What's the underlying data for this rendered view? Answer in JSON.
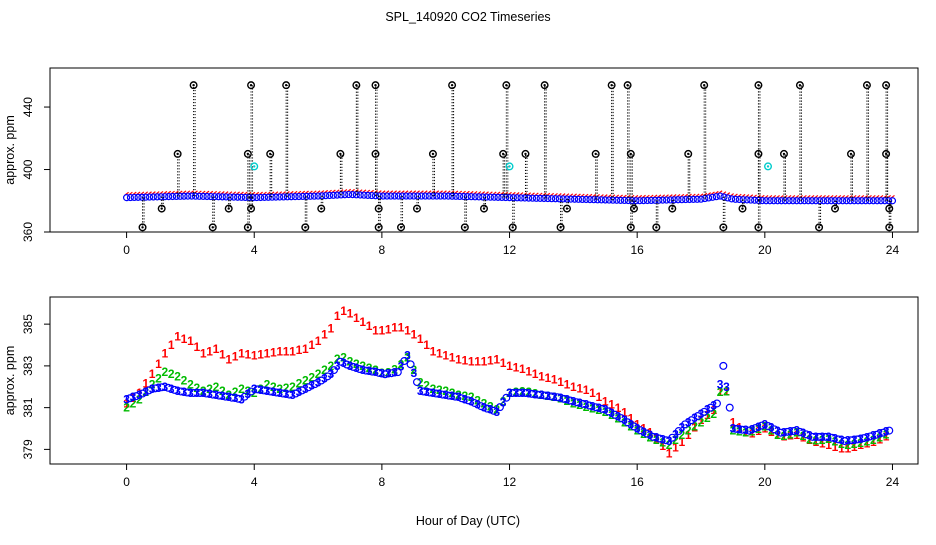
{
  "chart_data": [
    {
      "type": "scatter",
      "title": "SPL_140920  CO2 Timeseries",
      "xlabel": "",
      "ylabel": "approx. ppm",
      "xlim": [
        -2.4,
        24.8
      ],
      "ylim": [
        360,
        465
      ],
      "xticks": [
        0,
        4,
        8,
        12,
        16,
        20,
        24
      ],
      "xtick_labels": [
        "0",
        "4",
        "8",
        "12",
        "16",
        "20",
        "24"
      ],
      "yticks": [
        360,
        400,
        440
      ],
      "ytick_labels": [
        "360",
        "400",
        "440"
      ],
      "line_colors": {
        "main": "#ff0000",
        "points": "#0000ff",
        "flag": "#000000",
        "flag_alt": "#00cccc"
      },
      "baseline": {
        "hours": [
          0,
          2,
          4,
          6,
          7,
          8,
          10,
          12,
          14,
          16,
          18,
          18.6,
          19,
          20,
          22,
          24
        ],
        "values": [
          382,
          383,
          382,
          383,
          384,
          383,
          383,
          382,
          381,
          380,
          381,
          383,
          381,
          380,
          380,
          380
        ]
      },
      "flags_high": [
        2.1,
        3.9,
        5.0,
        7.2,
        7.8,
        10.2,
        11.9,
        13.1,
        15.2,
        15.7,
        18.1,
        19.8,
        21.1,
        23.2,
        23.8
      ],
      "flags_mid": [
        1.6,
        3.8,
        4.5,
        6.7,
        7.8,
        9.6,
        11.8,
        12.5,
        14.7,
        15.8,
        17.6,
        19.8,
        20.6,
        22.7,
        23.8
      ],
      "flags_low": [
        0.5,
        2.7,
        3.8,
        5.6,
        7.9,
        8.6,
        10.6,
        12.1,
        13.6,
        15.8,
        16.6,
        18.7,
        19.8,
        21.7,
        23.9
      ],
      "flags_below": [
        1.1,
        3.2,
        3.9,
        6.1,
        7.9,
        9.1,
        11.2,
        13.8,
        15.9,
        17.1,
        19.3,
        22.2,
        23.9
      ],
      "flags_cyan": [
        4.0,
        12.0,
        20.1
      ],
      "flag_levels": {
        "high": 454,
        "mid": 410,
        "low": 363,
        "below": 375,
        "cyan": 402
      }
    },
    {
      "type": "scatter",
      "title": "",
      "xlabel": "Hour of Day (UTC)",
      "ylabel": "approx. ppm",
      "xlim": [
        -2.4,
        24.8
      ],
      "ylim": [
        378.3,
        386.3
      ],
      "xticks": [
        0,
        4,
        8,
        12,
        16,
        20,
        24
      ],
      "xtick_labels": [
        "0",
        "4",
        "8",
        "12",
        "16",
        "20",
        "24"
      ],
      "yticks": [
        379,
        381,
        383,
        385
      ],
      "ytick_labels": [
        "379",
        "381",
        "383",
        "385"
      ],
      "series": [
        {
          "name": "1",
          "symbol": "1",
          "color": "#ff0000",
          "hours": [
            0,
            0.4,
            0.8,
            1.2,
            1.6,
            2.0,
            2.4,
            2.8,
            3.2,
            3.6,
            4.0,
            4.4,
            4.8,
            5.2,
            5.6,
            6.0,
            6.4,
            6.7,
            7.0,
            7.4,
            7.8,
            8.1,
            8.5,
            8.8,
            9.2,
            9.6,
            10.0,
            10.4,
            10.8,
            11.2,
            11.6,
            12.0,
            12.5,
            13.0,
            13.5,
            14.0,
            14.5,
            15.0,
            15.5,
            16.0,
            16.5,
            17.0,
            17.5,
            18.0,
            18.5,
            18.7,
            19.0,
            19.5,
            20.0,
            20.5,
            21.0,
            21.5,
            22.0,
            22.5,
            23.0,
            23.5,
            23.9
          ],
          "values": [
            381.2,
            381.7,
            382.6,
            383.6,
            384.4,
            384.2,
            383.6,
            383.8,
            383.3,
            383.6,
            383.5,
            383.6,
            383.7,
            383.7,
            383.8,
            384.2,
            384.8,
            385.7,
            385.5,
            385.1,
            384.7,
            384.7,
            384.9,
            384.7,
            384.3,
            383.7,
            383.5,
            383.3,
            383.2,
            383.2,
            383.3,
            383.0,
            382.8,
            382.5,
            382.3,
            382.0,
            381.8,
            381.3,
            380.9,
            380.2,
            379.7,
            378.8,
            379.5,
            380.4,
            381.0,
            382.5,
            380.3,
            379.7,
            380.0,
            379.6,
            379.7,
            379.4,
            379.2,
            379.0,
            379.2,
            379.4,
            379.7
          ]
        },
        {
          "name": "2",
          "symbol": "2",
          "color": "#00bb00",
          "hours": [
            0,
            0.4,
            0.8,
            1.2,
            1.6,
            2.0,
            2.4,
            2.8,
            3.2,
            3.6,
            4.0,
            4.4,
            4.8,
            5.2,
            5.6,
            6.0,
            6.4,
            6.7,
            7.0,
            7.4,
            7.8,
            8.1,
            8.5,
            8.8,
            9.2,
            9.6,
            10.0,
            10.4,
            10.8,
            11.2,
            11.6,
            12.0,
            12.5,
            13.0,
            13.5,
            14.0,
            14.5,
            15.0,
            15.5,
            16.0,
            16.5,
            17.0,
            17.5,
            18.0,
            18.5,
            18.7,
            19.0,
            19.5,
            20.0,
            20.5,
            21.0,
            21.5,
            22.0,
            22.5,
            23.0,
            23.5,
            23.9
          ],
          "values": [
            381.0,
            381.4,
            382.1,
            382.7,
            382.5,
            382.1,
            381.8,
            382.0,
            381.6,
            381.9,
            381.7,
            382.1,
            381.9,
            382.0,
            382.3,
            382.6,
            383.0,
            383.5,
            383.2,
            383.0,
            382.8,
            382.6,
            382.9,
            383.4,
            382.2,
            381.9,
            381.8,
            381.6,
            381.5,
            381.2,
            380.9,
            381.7,
            381.8,
            381.6,
            381.5,
            381.2,
            381.0,
            380.8,
            380.4,
            379.9,
            379.5,
            379.2,
            379.8,
            380.3,
            380.8,
            382.7,
            379.9,
            379.8,
            380.1,
            379.6,
            379.8,
            379.4,
            379.5,
            379.2,
            379.3,
            379.5,
            379.8
          ]
        },
        {
          "name": "3",
          "symbol": "3",
          "color": "#0000ff",
          "hours": [
            0,
            0.4,
            0.8,
            1.2,
            1.6,
            2.0,
            2.4,
            2.8,
            3.2,
            3.6,
            4.0,
            4.4,
            4.8,
            5.2,
            5.6,
            6.0,
            6.4,
            6.7,
            7.0,
            7.4,
            7.8,
            8.1,
            8.5,
            8.8,
            9.2,
            9.6,
            10.0,
            10.4,
            10.8,
            11.2,
            11.6,
            12.0,
            12.5,
            13.0,
            13.5,
            14.0,
            14.5,
            15.0,
            15.5,
            16.0,
            16.5,
            17.0,
            17.5,
            18.0,
            18.5,
            18.7,
            19.0,
            19.5,
            20.0,
            20.5,
            21.0,
            21.5,
            22.0,
            22.5,
            23.0,
            23.5,
            23.9
          ],
          "values": [
            381.4,
            381.6,
            381.9,
            382.0,
            381.8,
            381.7,
            381.7,
            381.6,
            381.5,
            381.4,
            381.9,
            381.8,
            381.7,
            381.6,
            381.9,
            382.2,
            382.6,
            383.2,
            383.0,
            382.8,
            382.7,
            382.6,
            382.7,
            383.5,
            381.8,
            381.7,
            381.6,
            381.5,
            381.3,
            381.0,
            380.8,
            381.7,
            381.7,
            381.6,
            381.5,
            381.3,
            381.1,
            380.9,
            380.5,
            380.0,
            379.6,
            379.4,
            380.2,
            380.7,
            381.2,
            383.0,
            380.0,
            379.9,
            380.2,
            379.8,
            379.9,
            379.6,
            379.6,
            379.4,
            379.5,
            379.7,
            379.9
          ]
        }
      ]
    }
  ]
}
